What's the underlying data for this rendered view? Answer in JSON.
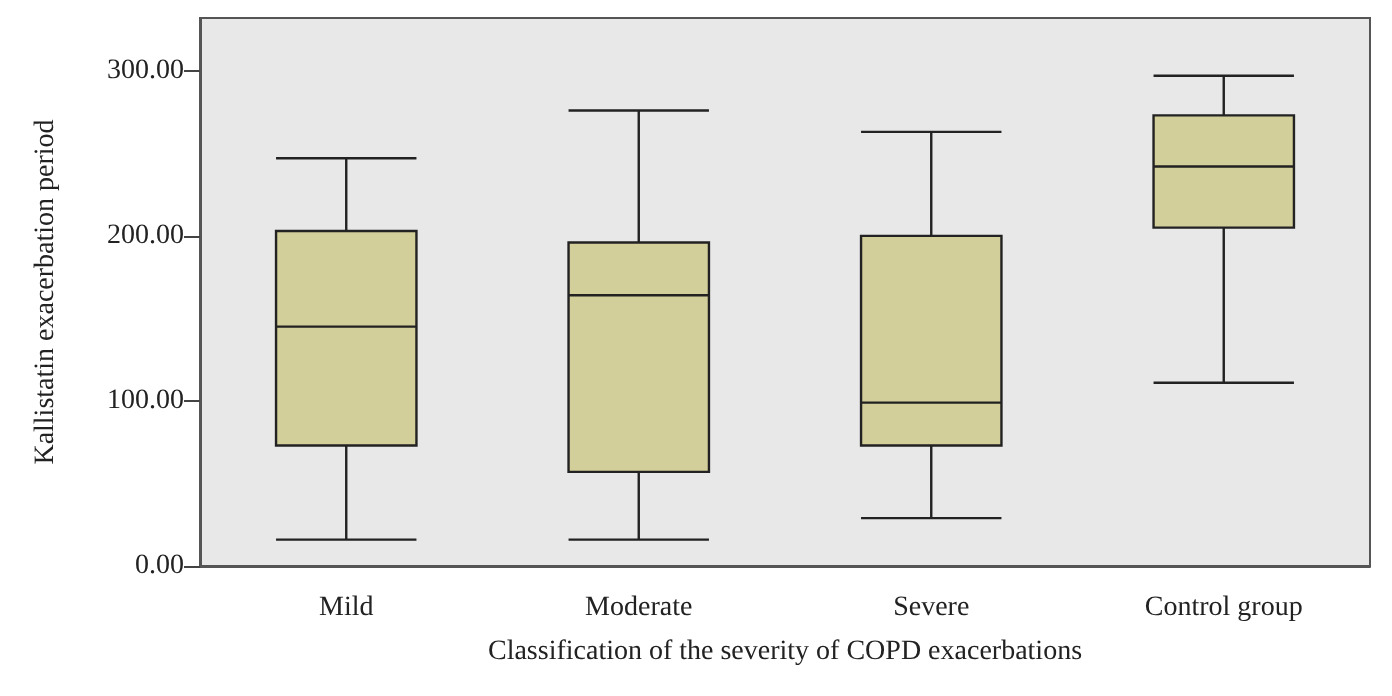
{
  "chart_data": {
    "type": "box",
    "xlabel": "Classification of the severity of COPD exacerbations",
    "ylabel": "Kallistatin exacerbation period",
    "categories": [
      "Mild",
      "Moderate",
      "Severe",
      "Control group"
    ],
    "color": "#d3cf9a",
    "boxes": [
      {
        "low": 16,
        "q1": 73,
        "median": 145,
        "q3": 203,
        "high": 247
      },
      {
        "low": 16,
        "q1": 57,
        "median": 164,
        "q3": 196,
        "high": 276
      },
      {
        "low": 29,
        "q1": 73,
        "median": 99,
        "q3": 200,
        "high": 263
      },
      {
        "low": 111,
        "q1": 205,
        "median": 242,
        "q3": 273,
        "high": 297
      }
    ],
    "ylim": [
      0,
      332
    ],
    "yticks": [
      {
        "value": 0,
        "label": "0.00"
      },
      {
        "value": 100,
        "label": "100.00"
      },
      {
        "value": 200,
        "label": "200.00"
      },
      {
        "value": 300,
        "label": "300.00"
      }
    ],
    "grid": false
  }
}
